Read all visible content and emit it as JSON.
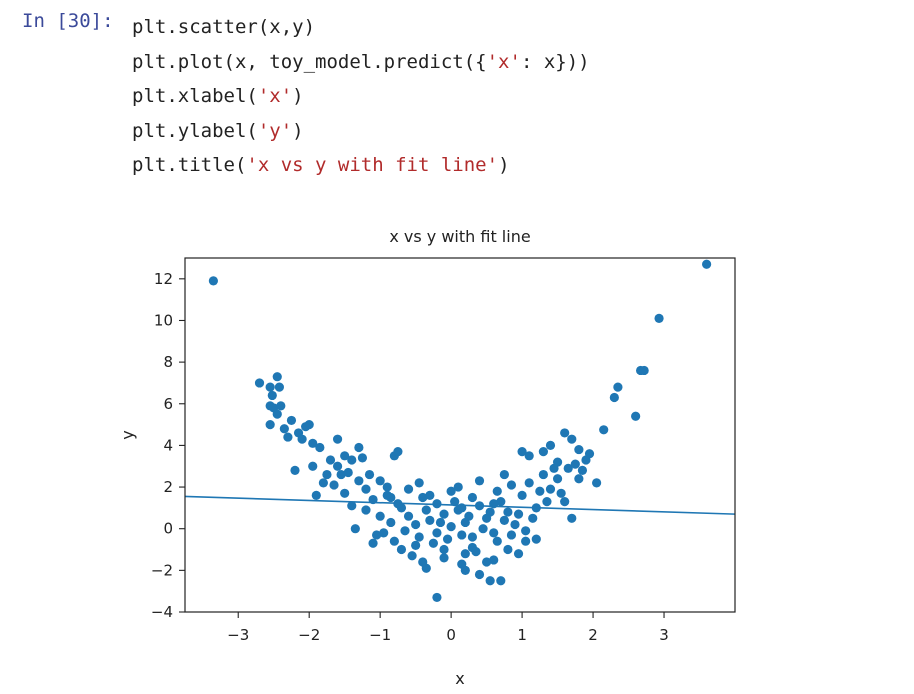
{
  "cell": {
    "prompt": "In [30]:",
    "lines": [
      [
        {
          "t": "plt.scatter(x,y)",
          "s": false
        }
      ],
      [
        {
          "t": "plt.plot(x, toy_model.predict({",
          "s": false
        },
        {
          "t": "'x'",
          "s": true
        },
        {
          "t": ": x}))",
          "s": false
        }
      ],
      [
        {
          "t": "plt.xlabel(",
          "s": false
        },
        {
          "t": "'x'",
          "s": true
        },
        {
          "t": ")",
          "s": false
        }
      ],
      [
        {
          "t": "plt.ylabel(",
          "s": false
        },
        {
          "t": "'y'",
          "s": true
        },
        {
          "t": ")",
          "s": false
        }
      ],
      [
        {
          "t": "plt.title(",
          "s": false
        },
        {
          "t": "'x vs y with fit line'",
          "s": true
        },
        {
          "t": ")",
          "s": false
        }
      ]
    ]
  },
  "chart_data": {
    "type": "scatter",
    "title": "x vs y with fit line",
    "xlabel": "x",
    "ylabel": "y",
    "xlim": [
      -3.75,
      4.0
    ],
    "ylim": [
      -4.0,
      13.0
    ],
    "xticks": [
      -3,
      -2,
      -1,
      0,
      1,
      2,
      3
    ],
    "yticks": [
      -4,
      -2,
      0,
      2,
      4,
      6,
      8,
      10,
      12
    ],
    "xtick_labels": [
      "−3",
      "−2",
      "−1",
      "0",
      "1",
      "2",
      "3"
    ],
    "ytick_labels": [
      "−4",
      "−2",
      "0",
      "2",
      "4",
      "6",
      "8",
      "10",
      "12"
    ],
    "grid": false,
    "color": "#1f77b4",
    "fit_line": {
      "x": [
        -3.75,
        4.0
      ],
      "y": [
        1.55,
        0.7
      ]
    },
    "points": [
      [
        -3.35,
        11.9
      ],
      [
        3.6,
        12.7
      ],
      [
        2.93,
        10.1
      ],
      [
        2.67,
        7.6
      ],
      [
        2.72,
        7.6
      ],
      [
        2.35,
        6.8
      ],
      [
        2.3,
        6.3
      ],
      [
        2.6,
        5.4
      ],
      [
        2.15,
        4.75
      ],
      [
        2.05,
        2.2
      ],
      [
        -2.7,
        7.0
      ],
      [
        -2.55,
        6.8
      ],
      [
        -2.45,
        7.3
      ],
      [
        -2.42,
        6.8
      ],
      [
        -2.52,
        6.4
      ],
      [
        -2.55,
        5.9
      ],
      [
        -2.5,
        5.8
      ],
      [
        -2.4,
        5.9
      ],
      [
        -2.45,
        5.5
      ],
      [
        -2.55,
        5.0
      ],
      [
        -2.35,
        4.8
      ],
      [
        -2.25,
        5.2
      ],
      [
        -2.3,
        4.4
      ],
      [
        -2.15,
        4.6
      ],
      [
        -2.0,
        5.0
      ],
      [
        -2.05,
        4.9
      ],
      [
        -2.1,
        4.3
      ],
      [
        -1.95,
        4.1
      ],
      [
        -2.2,
        2.8
      ],
      [
        -1.85,
        3.9
      ],
      [
        -1.7,
        3.3
      ],
      [
        -1.6,
        4.3
      ],
      [
        -1.95,
        3.0
      ],
      [
        -1.5,
        3.5
      ],
      [
        -1.4,
        3.3
      ],
      [
        -1.3,
        3.9
      ],
      [
        -1.25,
        3.4
      ],
      [
        -1.8,
        2.2
      ],
      [
        -1.9,
        1.6
      ],
      [
        -1.55,
        2.6
      ],
      [
        -0.8,
        3.5
      ],
      [
        -0.75,
        3.7
      ],
      [
        -1.35,
        0.0
      ],
      [
        -1.1,
        -0.7
      ],
      [
        -0.35,
        -1.9
      ],
      [
        -0.2,
        -3.3
      ],
      [
        0.4,
        -2.2
      ],
      [
        0.55,
        -2.5
      ],
      [
        0.6,
        -1.5
      ],
      [
        0.15,
        -1.7
      ],
      [
        1.0,
        3.7
      ],
      [
        1.1,
        3.5
      ],
      [
        1.3,
        3.7
      ],
      [
        1.4,
        4.0
      ],
      [
        1.6,
        4.6
      ],
      [
        1.7,
        4.3
      ],
      [
        1.8,
        3.8
      ],
      [
        1.95,
        3.6
      ],
      [
        1.5,
        3.2
      ],
      [
        1.65,
        2.9
      ],
      [
        1.8,
        2.4
      ],
      [
        1.6,
        1.3
      ],
      [
        1.7,
        0.5
      ],
      [
        1.2,
        -0.5
      ],
      [
        0.95,
        -1.2
      ],
      [
        0.7,
        -2.5
      ],
      [
        -0.1,
        -1.4
      ],
      [
        0.2,
        -2.0
      ],
      [
        0.3,
        -0.9
      ],
      [
        -0.5,
        -0.8
      ],
      [
        -1.2,
        1.9
      ],
      [
        -1.0,
        2.3
      ],
      [
        -0.9,
        1.6
      ],
      [
        -0.7,
        1.0
      ],
      [
        -0.6,
        0.6
      ],
      [
        -0.5,
        0.2
      ],
      [
        -0.4,
        1.5
      ],
      [
        -0.3,
        0.4
      ],
      [
        -0.2,
        -0.2
      ],
      [
        -0.1,
        0.7
      ],
      [
        0.0,
        0.1
      ],
      [
        0.1,
        0.9
      ],
      [
        0.2,
        0.3
      ],
      [
        0.3,
        -0.4
      ],
      [
        0.4,
        1.1
      ],
      [
        0.5,
        0.5
      ],
      [
        0.6,
        -0.2
      ],
      [
        0.7,
        1.3
      ],
      [
        0.8,
        0.8
      ],
      [
        0.9,
        0.2
      ],
      [
        1.0,
        1.6
      ],
      [
        1.1,
        2.2
      ],
      [
        1.2,
        1.0
      ],
      [
        1.3,
        2.6
      ],
      [
        1.4,
        1.9
      ],
      [
        1.5,
        2.4
      ],
      [
        1.55,
        1.7
      ],
      [
        1.25,
        1.8
      ],
      [
        0.85,
        2.1
      ],
      [
        0.65,
        1.8
      ],
      [
        -1.5,
        1.7
      ],
      [
        -1.4,
        1.1
      ],
      [
        -1.3,
        2.3
      ],
      [
        -1.2,
        0.9
      ],
      [
        -1.1,
        1.4
      ],
      [
        -1.0,
        0.6
      ],
      [
        -0.95,
        -0.2
      ],
      [
        -0.85,
        0.3
      ],
      [
        -0.8,
        -0.6
      ],
      [
        -0.75,
        1.2
      ],
      [
        -0.65,
        -0.1
      ],
      [
        -0.55,
        -1.3
      ],
      [
        -0.45,
        -0.4
      ],
      [
        -0.35,
        0.9
      ],
      [
        -0.25,
        -0.7
      ],
      [
        -0.15,
        0.3
      ],
      [
        -0.05,
        -0.5
      ],
      [
        0.05,
        1.3
      ],
      [
        0.15,
        -0.3
      ],
      [
        0.25,
        0.6
      ],
      [
        0.35,
        -1.1
      ],
      [
        0.45,
        0.0
      ],
      [
        0.55,
        0.8
      ],
      [
        0.65,
        -0.6
      ],
      [
        0.75,
        0.4
      ],
      [
        0.85,
        -0.3
      ],
      [
        0.95,
        0.7
      ],
      [
        1.05,
        -0.1
      ],
      [
        1.15,
        0.5
      ],
      [
        1.35,
        1.3
      ],
      [
        -1.65,
        2.1
      ],
      [
        -1.45,
        2.7
      ],
      [
        -1.15,
        2.6
      ],
      [
        -0.9,
        2.0
      ],
      [
        -0.6,
        1.9
      ],
      [
        -0.3,
        1.6
      ],
      [
        0.0,
        1.8
      ],
      [
        0.3,
        1.5
      ],
      [
        0.6,
        1.2
      ],
      [
        1.45,
        2.9
      ],
      [
        -0.7,
        -1.0
      ],
      [
        -0.4,
        -1.6
      ],
      [
        -0.1,
        -1.0
      ],
      [
        0.2,
        -1.2
      ],
      [
        0.5,
        -1.6
      ],
      [
        0.8,
        -1.0
      ],
      [
        1.05,
        -0.6
      ],
      [
        -1.05,
        -0.3
      ],
      [
        -0.85,
        1.5
      ],
      [
        0.15,
        1.0
      ],
      [
        -0.45,
        2.2
      ],
      [
        0.1,
        2.0
      ],
      [
        0.4,
        2.3
      ],
      [
        0.75,
        2.6
      ],
      [
        -0.2,
        1.2
      ],
      [
        1.75,
        3.1
      ],
      [
        1.85,
        2.8
      ],
      [
        1.9,
        3.3
      ],
      [
        -1.75,
        2.6
      ],
      [
        -1.6,
        3.0
      ]
    ]
  }
}
